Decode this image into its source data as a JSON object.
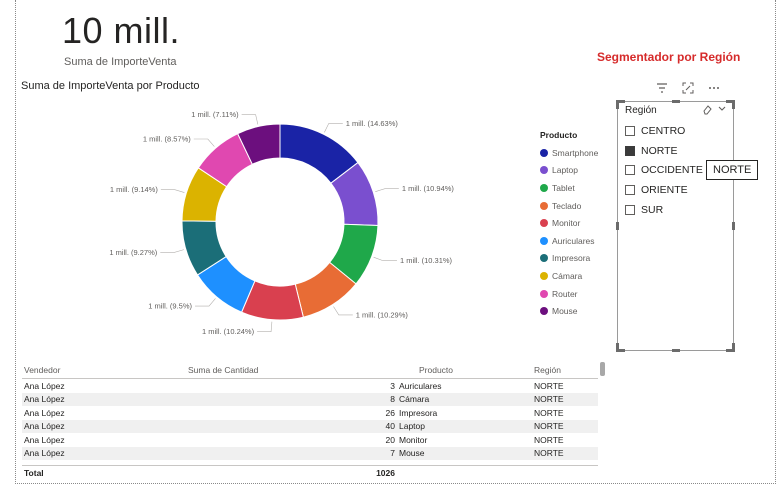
{
  "kpi": {
    "value": "10 mill.",
    "label": "Suma de ImporteVenta"
  },
  "chart": {
    "title": "Suma de ImporteVenta por Producto",
    "legend_title": "Producto"
  },
  "chart_data": {
    "type": "pie",
    "title": "Suma de ImporteVenta por Producto",
    "legend_title": "Producto",
    "legend_position": "right",
    "categories": [
      "Smartphone",
      "Laptop",
      "Tablet",
      "Teclado",
      "Monitor",
      "Auriculares",
      "Impresora",
      "Cámara",
      "Router",
      "Mouse"
    ],
    "values": [
      14.63,
      10.94,
      10.31,
      10.29,
      10.24,
      9.5,
      9.27,
      9.14,
      8.57,
      7.11
    ],
    "labels": [
      "1 mill. (14.63%)",
      "1 mill. (10.94%)",
      "1 mill. (10.31%)",
      "1 mill. (10.29%)",
      "1 mill. (10.24%)",
      "1 mill. (9.5%)",
      "1 mill. (9.27%)",
      "1 mill. (9.14%)",
      "1 mill. (8.57%)",
      "1 mill. (7.11%)"
    ],
    "colors": [
      "#1a23a6",
      "#7a4fcf",
      "#1fa84a",
      "#e86c35",
      "#d9404f",
      "#1e90ff",
      "#1b6e78",
      "#dbb300",
      "#e048b0",
      "#6c0f7e"
    ]
  },
  "slicer": {
    "title": "Segmentador por Región",
    "header": "Región",
    "items": [
      {
        "label": "CENTRO",
        "checked": false
      },
      {
        "label": "NORTE",
        "checked": true
      },
      {
        "label": "OCCIDENTE",
        "checked": false
      },
      {
        "label": "ORIENTE",
        "checked": false
      },
      {
        "label": "SUR",
        "checked": false
      }
    ],
    "tooltip": "NORTE",
    "icons": [
      "filter-icon",
      "focus-mode-icon",
      "more-options-icon",
      "eraser-icon",
      "chevron-down-icon"
    ]
  },
  "table": {
    "headers": [
      "Vendedor",
      "Suma de Cantidad",
      "Producto",
      "Región"
    ],
    "rows": [
      [
        "Ana López",
        "3",
        "Auriculares",
        "NORTE"
      ],
      [
        "Ana López",
        "8",
        "Cámara",
        "NORTE"
      ],
      [
        "Ana López",
        "26",
        "Impresora",
        "NORTE"
      ],
      [
        "Ana López",
        "40",
        "Laptop",
        "NORTE"
      ],
      [
        "Ana López",
        "20",
        "Monitor",
        "NORTE"
      ],
      [
        "Ana López",
        "7",
        "Mouse",
        "NORTE"
      ]
    ],
    "total_label": "Total",
    "total_value": "1026"
  }
}
